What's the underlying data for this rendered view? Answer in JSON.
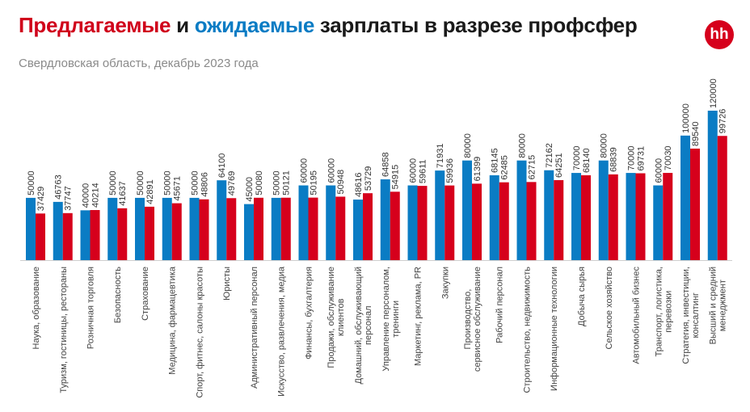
{
  "title": {
    "part1": "Предлагаемые",
    "part2": " и ",
    "part3": "ожидаемые",
    "part4": " зарплаты в разрезе профсфер"
  },
  "subtitle": "Свердловская область, декабрь 2023 года",
  "logo": "hh",
  "colors": {
    "offered": "#0a7cc4",
    "expected": "#d6001c",
    "accent_title_red": "#d0021b"
  },
  "chart_data": {
    "type": "bar",
    "title": "Предлагаемые и ожидаемые зарплаты в разрезе профсфер",
    "subtitle": "Свердловская область, декабрь 2023 года",
    "ylim": [
      0,
      120000
    ],
    "grid": false,
    "legend": "none",
    "categories": [
      [
        "Наука, образование"
      ],
      [
        "Туризм, гостиницы, рестораны"
      ],
      [
        "Розничная торговля"
      ],
      [
        "Безопасность"
      ],
      [
        "Страхование"
      ],
      [
        "Медицина, фармацевтика"
      ],
      [
        "Спорт, фитнес, салоны красоты"
      ],
      [
        "Юристы"
      ],
      [
        "Административный персонал"
      ],
      [
        "Искусство, развлечения, медиа"
      ],
      [
        "Финансы, бухгалтерия"
      ],
      [
        "Продажи, обслуживание",
        "клиентов"
      ],
      [
        "Домашний, обслуживающий",
        "персонал"
      ],
      [
        "Управление персоналом,",
        "тренинги"
      ],
      [
        "Маркетинг, реклама, PR"
      ],
      [
        "Закупки"
      ],
      [
        "Производство,",
        "сервисное обслуживание"
      ],
      [
        "Рабочий персонал"
      ],
      [
        "Строительство, недвижимость"
      ],
      [
        "Информационные технологии"
      ],
      [
        "Добыча сырья"
      ],
      [
        "Сельское хозяйство"
      ],
      [
        "Автомобильный бизнес"
      ],
      [
        "Транспорт, логистика,",
        "перевозки"
      ],
      [
        "Стратегия, инвестиции,",
        "консалтинг"
      ],
      [
        "Высший и средний",
        "менеджмент"
      ]
    ],
    "series": [
      {
        "color": "#0a7cc4",
        "values": [
          50000,
          46763,
          40000,
          50000,
          50000,
          50000,
          50000,
          64100,
          45000,
          50000,
          60000,
          60000,
          48616,
          64858,
          60000,
          71931,
          80000,
          68145,
          80000,
          72162,
          70000,
          80000,
          70000,
          60000,
          100000,
          120000
        ]
      },
      {
        "color": "#d6001c",
        "values": [
          37429,
          37747,
          40214,
          41637,
          42891,
          45671,
          48806,
          49769,
          50080,
          50121,
          50195,
          50948,
          53729,
          54915,
          59611,
          59936,
          61399,
          62485,
          62715,
          64251,
          68140,
          68839,
          69731,
          70030,
          89540,
          99726
        ]
      }
    ]
  }
}
